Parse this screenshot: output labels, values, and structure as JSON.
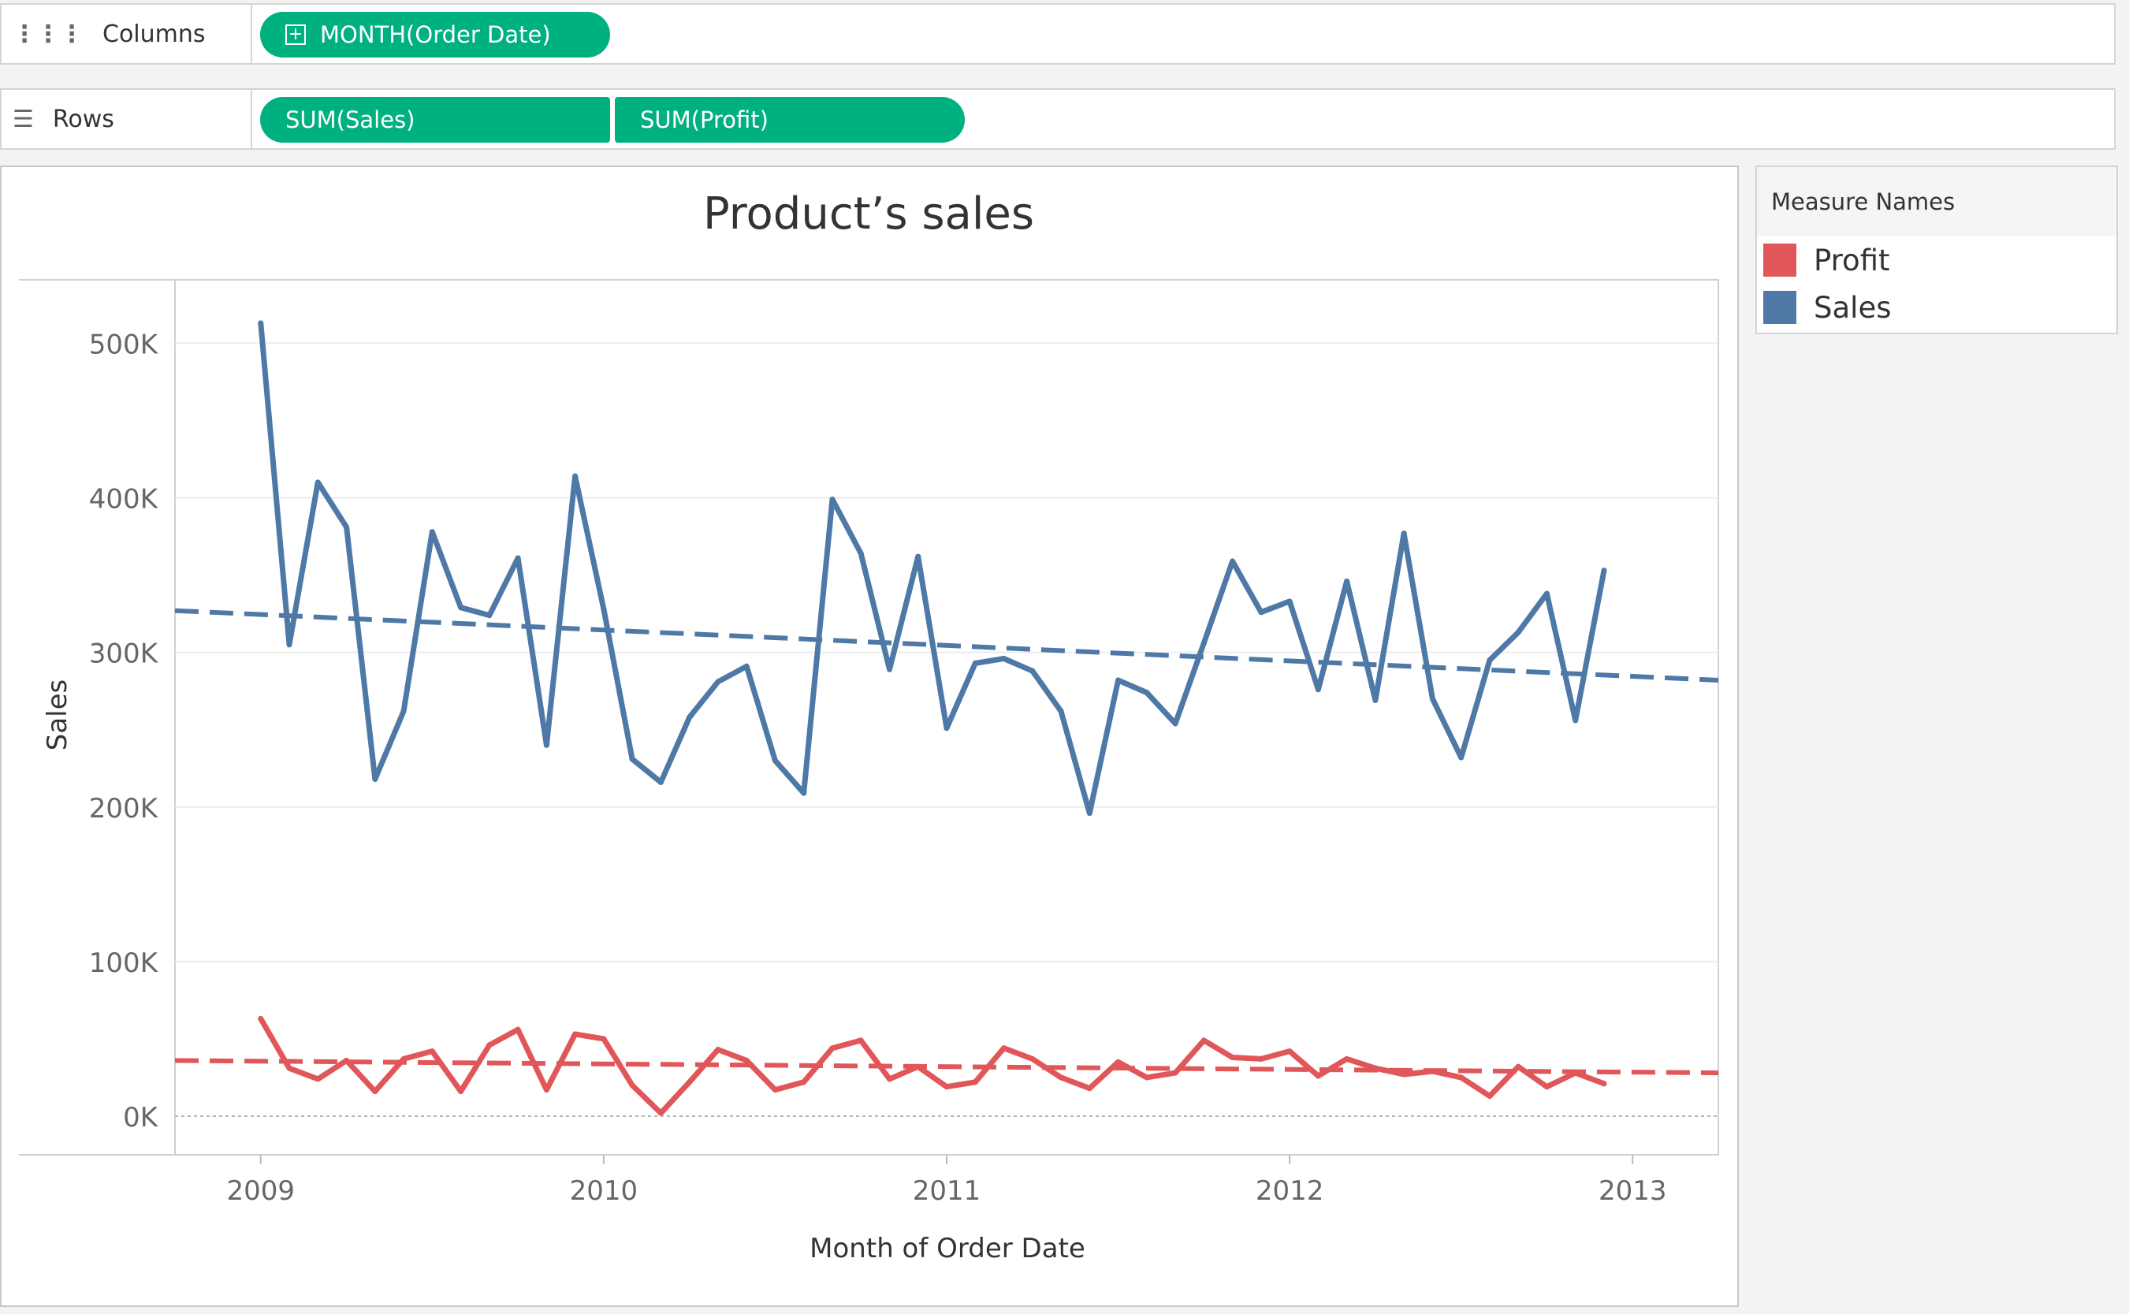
{
  "shelves": {
    "columns": {
      "label": "Columns",
      "icon": "columns-icon",
      "pills": [
        "MONTH(Order Date)"
      ]
    },
    "rows": {
      "label": "Rows",
      "icon": "rows-icon",
      "pills": [
        "SUM(Sales)",
        "SUM(Profit)"
      ]
    }
  },
  "colors": {
    "pill": "#00b180",
    "sales": "#4e79a7",
    "profit": "#e15759"
  },
  "legend": {
    "title": "Measure Names",
    "items": [
      {
        "label": "Profit",
        "color": "#e15759"
      },
      {
        "label": "Sales",
        "color": "#4e79a7"
      }
    ]
  },
  "chart_data": {
    "type": "line",
    "title": "Product’s sales",
    "xlabel": "Month of Order Date",
    "ylabel": "Sales",
    "x_ticks": [
      "2009",
      "2010",
      "2011",
      "2012",
      "2013"
    ],
    "y_ticks": [
      "0K",
      "100K",
      "200K",
      "300K",
      "400K",
      "500K"
    ],
    "ylim": [
      -25000,
      540000
    ],
    "x_range": [
      "2008-10",
      "2013-04"
    ],
    "grid": true,
    "x": [
      "2009-01",
      "2009-02",
      "2009-03",
      "2009-04",
      "2009-05",
      "2009-06",
      "2009-07",
      "2009-08",
      "2009-09",
      "2009-10",
      "2009-11",
      "2009-12",
      "2010-01",
      "2010-02",
      "2010-03",
      "2010-04",
      "2010-05",
      "2010-06",
      "2010-07",
      "2010-08",
      "2010-09",
      "2010-10",
      "2010-11",
      "2010-12",
      "2011-01",
      "2011-02",
      "2011-03",
      "2011-04",
      "2011-05",
      "2011-06",
      "2011-07",
      "2011-08",
      "2011-09",
      "2011-10",
      "2011-11",
      "2011-12",
      "2012-01",
      "2012-02",
      "2012-03",
      "2012-04",
      "2012-05",
      "2012-06",
      "2012-07",
      "2012-08",
      "2012-09",
      "2012-10",
      "2012-11",
      "2012-12"
    ],
    "series": [
      {
        "name": "Sales",
        "color": "#4e79a7",
        "values": [
          513000,
          305000,
          410000,
          381000,
          218000,
          262000,
          378000,
          329000,
          324000,
          361000,
          240000,
          414000,
          328000,
          231000,
          216000,
          258000,
          281000,
          291000,
          230000,
          209000,
          399000,
          364000,
          289000,
          362000,
          251000,
          293000,
          296000,
          288000,
          262000,
          196000,
          282000,
          274000,
          254000,
          306000,
          359000,
          326000,
          333000,
          276000,
          346000,
          269000,
          377000,
          270000,
          232000,
          295000,
          313000,
          338000,
          256000,
          353000
        ],
        "trend": [
          327000,
          282000
        ]
      },
      {
        "name": "Profit",
        "color": "#e15759",
        "values": [
          63000,
          31000,
          24000,
          36000,
          16000,
          37000,
          42000,
          16000,
          46000,
          56000,
          17000,
          53000,
          50000,
          20000,
          2000,
          22000,
          43000,
          36000,
          17000,
          22000,
          44000,
          49000,
          24000,
          32000,
          19000,
          22000,
          44000,
          37000,
          25000,
          18000,
          35000,
          25000,
          28000,
          49000,
          38000,
          37000,
          42000,
          26000,
          37000,
          31000,
          27000,
          29000,
          25000,
          13000,
          32000,
          19000,
          28000,
          21000
        ],
        "trend": [
          36000,
          28000
        ]
      }
    ]
  }
}
